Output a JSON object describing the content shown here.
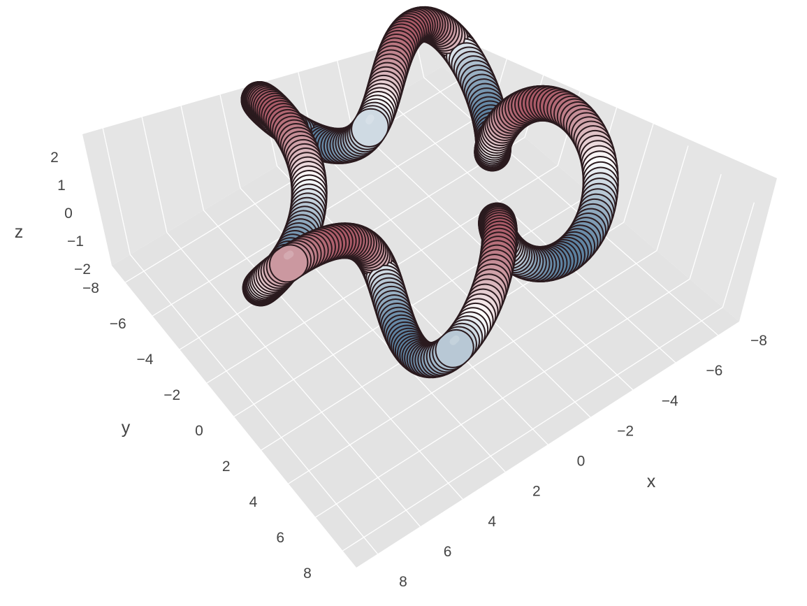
{
  "chart_data": {
    "type": "surface",
    "xlabel": "x",
    "ylabel": "y",
    "zlabel": "z",
    "x_ticks": [
      "−8",
      "−6",
      "−4",
      "−2",
      "0",
      "2",
      "4",
      "6",
      "8"
    ],
    "y_ticks": [
      "−8",
      "−6",
      "−4",
      "−2",
      "0",
      "2",
      "4",
      "6",
      "8"
    ],
    "z_ticks": [
      "−2",
      "−1",
      "0",
      "1",
      "2"
    ],
    "xlim": [
      -9,
      9
    ],
    "ylim": [
      -9,
      9
    ],
    "zlim": [
      -2.5,
      2.5
    ],
    "surface": {
      "shape": "twisted torus knot tube",
      "colorscale": "RdBu",
      "color_by": "z",
      "color_low": "#1b4f7a",
      "color_mid": "#ffffff",
      "color_high": "#8b1a2c"
    },
    "scene_background": "#e5e5e5",
    "grid": true,
    "legend": "none"
  }
}
